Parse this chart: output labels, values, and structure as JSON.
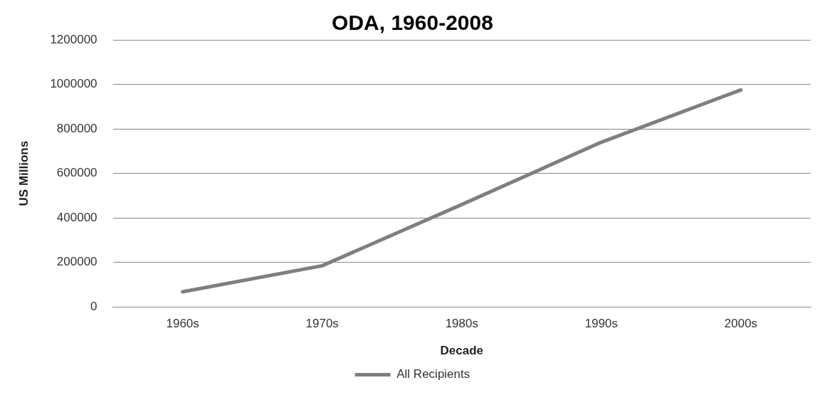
{
  "chart_data": {
    "type": "line",
    "title": "ODA, 1960-2008",
    "xlabel": "Decade",
    "ylabel": "US Millions",
    "categories": [
      "1960s",
      "1970s",
      "1980s",
      "1990s",
      "2000s"
    ],
    "series": [
      {
        "name": "All Recipients",
        "color": "#7f7f7f",
        "values": [
          68000,
          185000,
          460000,
          740000,
          975000
        ]
      }
    ],
    "ylim": [
      0,
      1200000
    ],
    "yticks": [
      0,
      200000,
      400000,
      600000,
      800000,
      1000000,
      1200000
    ],
    "grid": "y",
    "legend": "bottom",
    "marker": "none",
    "line_style": "solid"
  }
}
